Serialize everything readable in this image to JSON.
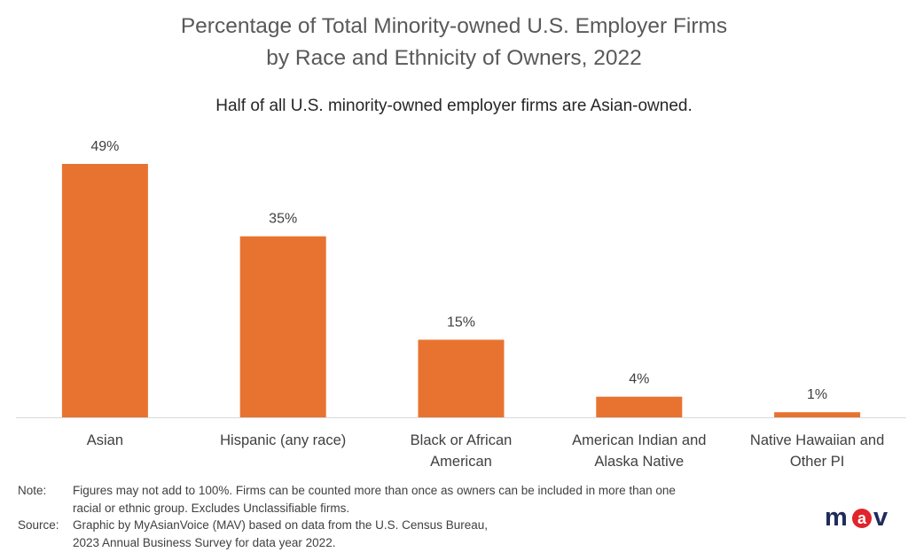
{
  "chart_data": {
    "type": "bar",
    "title_lines": [
      "Percentage of Total Minority-owned U.S. Employer Firms",
      "by Race and Ethnicity of Owners, 2022"
    ],
    "subtitle": "Half of all U.S. minority-owned employer firms are Asian-owned.",
    "categories": [
      [
        "Asian"
      ],
      [
        "Hispanic (any race)"
      ],
      [
        "Black or African",
        "American"
      ],
      [
        "American Indian and",
        "Alaska Native"
      ],
      [
        "Native Hawaiian and",
        "Other PI"
      ]
    ],
    "values": [
      49,
      35,
      15,
      4,
      1
    ],
    "data_labels": [
      "49%",
      "35%",
      "15%",
      "4%",
      "1%"
    ],
    "ylim": [
      0,
      49
    ],
    "bar_color": "#E87330",
    "grid": false,
    "legend": "none"
  },
  "notes": {
    "note_label": "Note:",
    "note_line1": "Figures may not add to 100%. Firms can be counted more than once as owners can be included  in more than one",
    "note_line2": "racial or ethnic group.  Excludes Unclassifiable firms.",
    "source_label": "Source:",
    "source_line1": "Graphic by MyAsianVoice (MAV) based on data from the U.S. Census Bureau,",
    "source_line2": "2023 Annual Business Survey for data year 2022."
  },
  "logo": {
    "text_m": "m",
    "text_a": "a",
    "text_v": "v",
    "color_dark": "#1F2A5C",
    "color_red": "#E0242B"
  }
}
